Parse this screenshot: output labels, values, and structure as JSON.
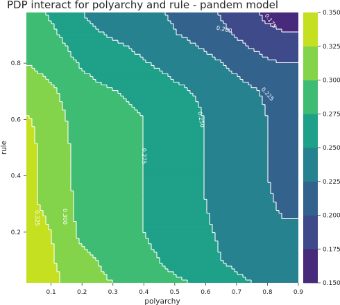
{
  "chart_data": {
    "type": "contour",
    "title": "PDP interact for polyarchy and rule - pandem model",
    "xlabel": "polyarchy",
    "ylabel": "rule",
    "xlim": [
      0.02,
      0.9
    ],
    "ylim": [
      0.02,
      0.98
    ],
    "x_ticks": [
      "0.1",
      "0.2",
      "0.3",
      "0.4",
      "0.5",
      "0.6",
      "0.7",
      "0.8",
      "0.9"
    ],
    "y_ticks": [
      "0.2",
      "0.4",
      "0.6",
      "0.8"
    ],
    "colorbar": {
      "min": 0.15,
      "max": 0.35,
      "ticks": [
        "0.150",
        "0.175",
        "0.200",
        "0.225",
        "0.250",
        "0.275",
        "0.300",
        "0.325",
        "0.350"
      ],
      "levels": [
        0.15,
        0.175,
        0.2,
        0.225,
        0.25,
        0.275,
        0.3,
        0.325,
        0.35
      ],
      "colors": [
        "#472a7a",
        "#3e4a89",
        "#33638d",
        "#26828e",
        "#1fa088",
        "#3fbc73",
        "#84d44b",
        "#c5e021",
        "#fde725"
      ],
      "colormap": "viridis"
    },
    "x": [
      0.02,
      0.1,
      0.15,
      0.2,
      0.25,
      0.3,
      0.35,
      0.4,
      0.45,
      0.5,
      0.55,
      0.6,
      0.65,
      0.7,
      0.75,
      0.8,
      0.85,
      0.9
    ],
    "y": [
      0.02,
      0.1,
      0.2,
      0.3,
      0.4,
      0.5,
      0.6,
      0.7,
      0.8,
      0.9,
      0.98
    ],
    "z": [
      [
        0.345,
        0.34,
        0.315,
        0.31,
        0.305,
        0.3,
        0.29,
        0.285,
        0.28,
        0.278,
        0.275,
        0.27,
        0.26,
        0.255,
        0.25,
        0.245,
        0.24,
        0.24
      ],
      [
        0.34,
        0.33,
        0.31,
        0.305,
        0.3,
        0.29,
        0.285,
        0.28,
        0.275,
        0.27,
        0.265,
        0.255,
        0.25,
        0.245,
        0.24,
        0.232,
        0.23,
        0.23
      ],
      [
        0.335,
        0.325,
        0.308,
        0.295,
        0.29,
        0.285,
        0.28,
        0.275,
        0.27,
        0.265,
        0.26,
        0.252,
        0.248,
        0.242,
        0.235,
        0.227,
        0.226,
        0.226
      ],
      [
        0.33,
        0.32,
        0.305,
        0.293,
        0.288,
        0.284,
        0.28,
        0.275,
        0.268,
        0.262,
        0.258,
        0.25,
        0.246,
        0.24,
        0.233,
        0.226,
        0.224,
        0.224
      ],
      [
        0.33,
        0.32,
        0.303,
        0.293,
        0.288,
        0.284,
        0.28,
        0.275,
        0.268,
        0.262,
        0.257,
        0.249,
        0.245,
        0.239,
        0.232,
        0.225,
        0.223,
        0.223
      ],
      [
        0.33,
        0.318,
        0.302,
        0.293,
        0.288,
        0.284,
        0.28,
        0.275,
        0.268,
        0.262,
        0.257,
        0.249,
        0.245,
        0.239,
        0.232,
        0.225,
        0.223,
        0.223
      ],
      [
        0.328,
        0.315,
        0.3,
        0.292,
        0.288,
        0.284,
        0.28,
        0.275,
        0.268,
        0.262,
        0.257,
        0.249,
        0.244,
        0.238,
        0.231,
        0.225,
        0.222,
        0.222
      ],
      [
        0.315,
        0.305,
        0.292,
        0.285,
        0.28,
        0.276,
        0.272,
        0.268,
        0.262,
        0.256,
        0.25,
        0.245,
        0.24,
        0.234,
        0.228,
        0.222,
        0.218,
        0.218
      ],
      [
        0.3,
        0.29,
        0.282,
        0.272,
        0.266,
        0.262,
        0.258,
        0.252,
        0.246,
        0.24,
        0.236,
        0.232,
        0.226,
        0.218,
        0.21,
        0.204,
        0.2,
        0.2
      ],
      [
        0.29,
        0.28,
        0.27,
        0.258,
        0.252,
        0.248,
        0.244,
        0.238,
        0.232,
        0.226,
        0.222,
        0.215,
        0.205,
        0.198,
        0.19,
        0.182,
        0.178,
        0.178
      ],
      [
        0.282,
        0.272,
        0.262,
        0.25,
        0.244,
        0.24,
        0.236,
        0.232,
        0.226,
        0.222,
        0.216,
        0.208,
        0.198,
        0.19,
        0.18,
        0.168,
        0.16,
        0.158
      ]
    ],
    "contour_labels": [
      {
        "text": "0.175",
        "x": 0.81,
        "y": 0.95,
        "angle": 55
      },
      {
        "text": "0.200",
        "x": 0.66,
        "y": 0.92,
        "angle": 12
      },
      {
        "text": "0.225",
        "x": 0.8,
        "y": 0.69,
        "angle": 48
      },
      {
        "text": "0.250",
        "x": 0.585,
        "y": 0.6,
        "angle": 80
      },
      {
        "text": "0.275",
        "x": 0.4,
        "y": 0.47,
        "angle": 90
      },
      {
        "text": "0.300",
        "x": 0.145,
        "y": 0.255,
        "angle": 90
      },
      {
        "text": "0.325",
        "x": 0.055,
        "y": 0.25,
        "angle": 90
      }
    ]
  }
}
